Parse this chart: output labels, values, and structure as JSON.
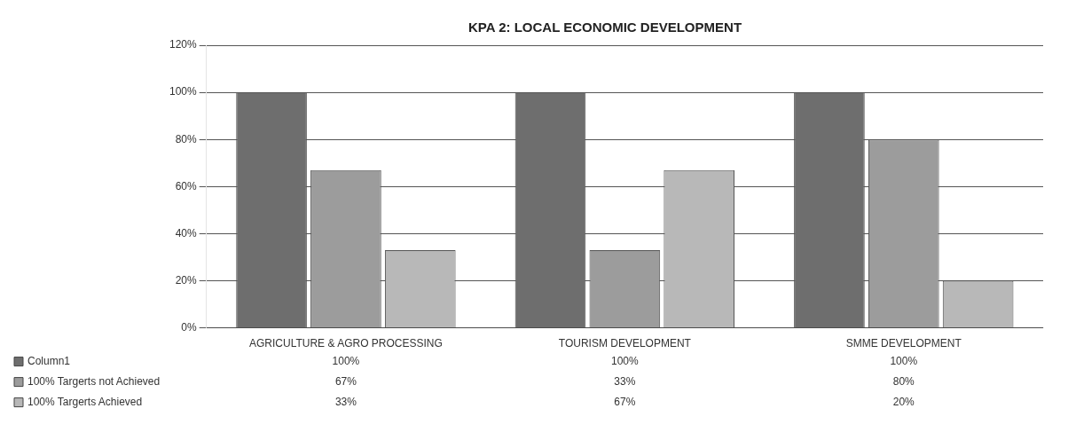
{
  "chart_data": {
    "type": "bar",
    "title": "KPA 2: LOCAL ECONOMIC DEVELOPMENT",
    "categories": [
      "AGRICULTURE & AGRO PROCESSING",
      "TOURISM DEVELOPMENT",
      "SMME DEVELOPMENT"
    ],
    "series": [
      {
        "name": "Column1",
        "color": "#6e6e6e",
        "values": [
          100,
          100,
          100
        ],
        "value_labels": [
          "100%",
          "100%",
          "100%"
        ]
      },
      {
        "name": "100% Targerts not Achieved",
        "color": "#9c9c9c",
        "values": [
          67,
          33,
          80
        ],
        "value_labels": [
          "67%",
          "33%",
          "80%"
        ]
      },
      {
        "name": "100% Targerts Achieved",
        "color": "#b8b8b8",
        "values": [
          33,
          67,
          20
        ],
        "value_labels": [
          "33%",
          "67%",
          "20%"
        ]
      }
    ],
    "ylim": [
      0,
      120
    ],
    "yticks": [
      {
        "value": 0,
        "label": "0%"
      },
      {
        "value": 20,
        "label": "20%"
      },
      {
        "value": 40,
        "label": "40%"
      },
      {
        "value": 60,
        "label": "60%"
      },
      {
        "value": 80,
        "label": "80%"
      },
      {
        "value": 100,
        "label": "100%"
      },
      {
        "value": 120,
        "label": "120%"
      }
    ],
    "grid": "y",
    "legend": "bottom left"
  }
}
